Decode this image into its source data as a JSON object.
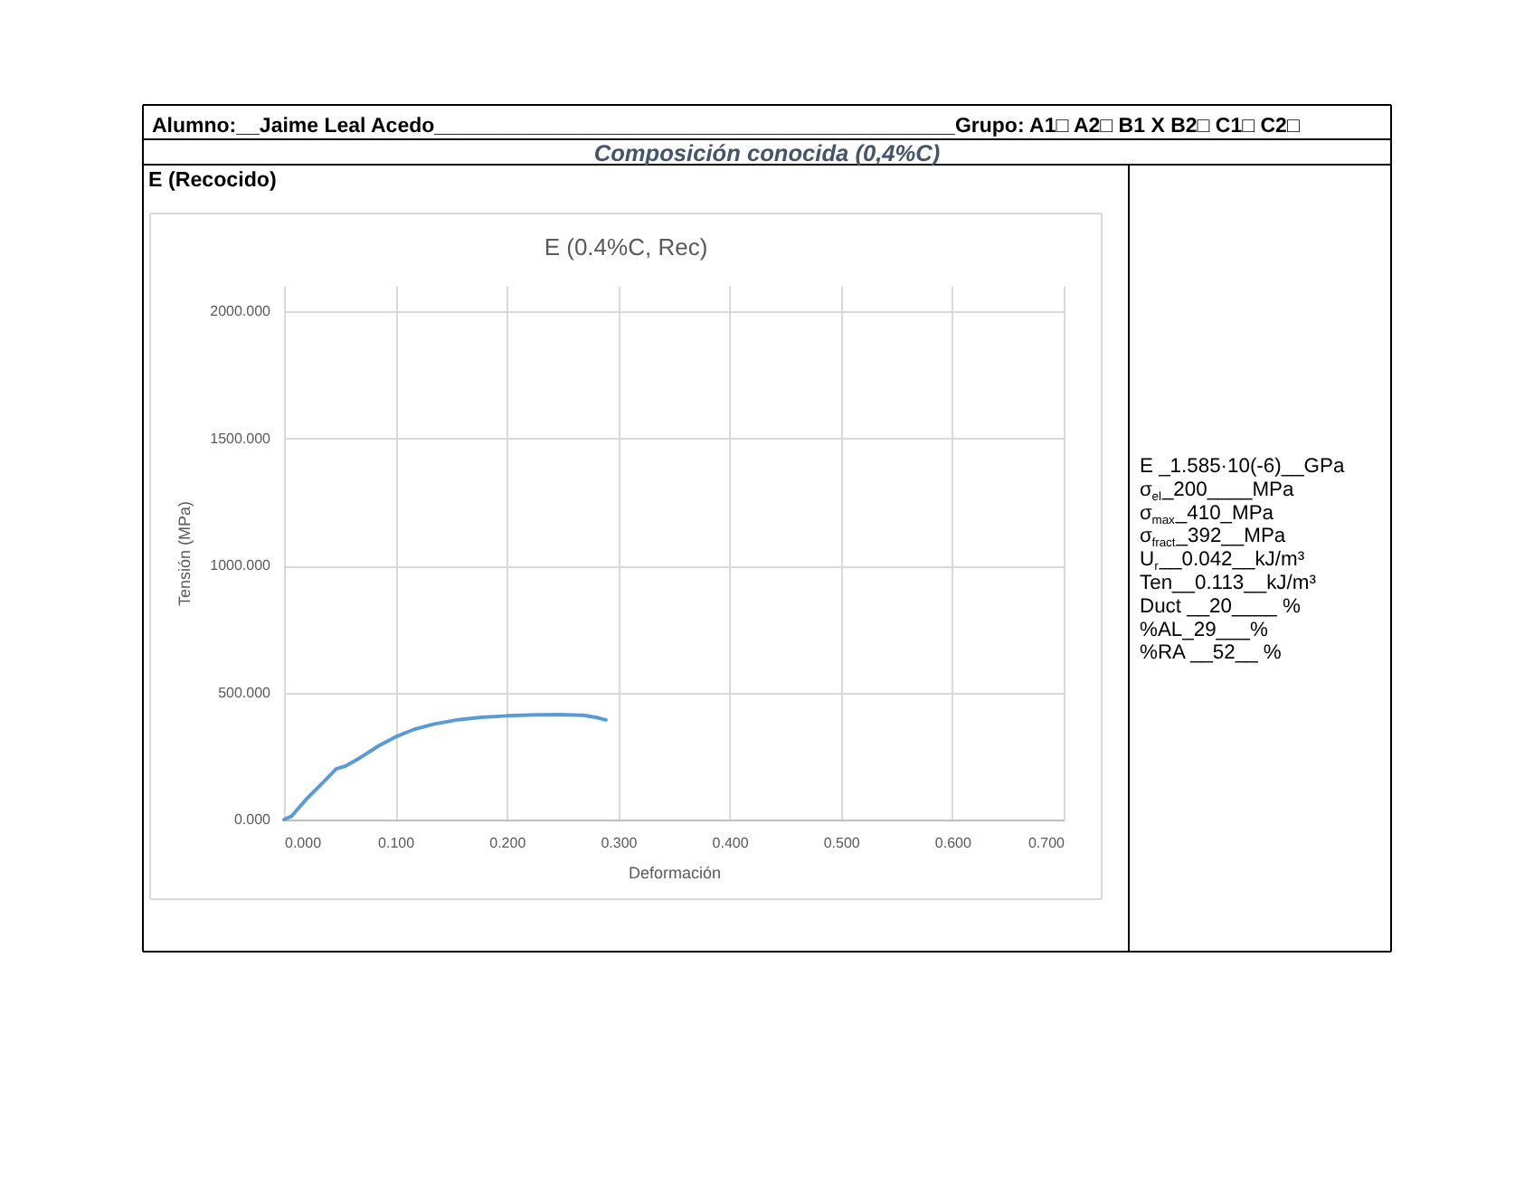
{
  "chart_data": {
    "type": "line",
    "title": "E (0.4%C, Rec)",
    "xlabel": "Deformación",
    "ylabel": "Tensión (MPa)",
    "x": [
      0,
      0.007,
      0.02,
      0.036,
      0.047,
      0.055,
      0.069,
      0.085,
      0.1,
      0.117,
      0.134,
      0.155,
      0.177,
      0.2,
      0.226,
      0.247,
      0.269,
      0.28,
      0.289
    ],
    "series": [
      {
        "color": "#5b9bd5",
        "values": [
          0,
          14,
          80,
          150,
          200,
          210,
          245,
          290,
          325,
          355,
          375,
          392,
          402,
          408,
          412,
          413,
          410,
          402,
          392
        ]
      }
    ],
    "xlim": [
      0,
      0.7
    ],
    "xticks": [
      {
        "value": 0,
        "label": "0.000"
      },
      {
        "value": 0.1,
        "label": "0.100"
      },
      {
        "value": 0.2,
        "label": "0.200"
      },
      {
        "value": 0.3,
        "label": "0.300"
      },
      {
        "value": 0.4,
        "label": "0.400"
      },
      {
        "value": 0.5,
        "label": "0.500"
      },
      {
        "value": 0.6,
        "label": "0.600"
      },
      {
        "value": 0.7,
        "label": "0.700"
      }
    ],
    "ylim": [
      0,
      2100
    ],
    "yticks": [
      {
        "value": 0,
        "label": "0.000"
      },
      {
        "value": 500,
        "label": "500.000"
      },
      {
        "value": 1000,
        "label": "1000.000"
      },
      {
        "value": 1500,
        "label": "1500.000"
      },
      {
        "value": 2000,
        "label": "2000.000"
      }
    ],
    "grid": true,
    "annotations": [
      "Alumno:__Jaime Leal Acedo_____________________________________________Grupo: A1□ A2□ B1 X B2□ C1□ C2□",
      "Composición conocida (0,4%C)",
      "E (Recocido)",
      "E _1.585·10(-6)__GPa",
      "σ$_{el}$_200____MPa",
      "σ$_{max}$_410_MPa",
      "σ$_{fract}$_392__MPa",
      "U$_{r}$__0.042__kJ/m³",
      "Ten__0.113__kJ/m³",
      "Duct __20____ %",
      "%AL_29___%",
      "%RA __52__ %"
    ]
  }
}
